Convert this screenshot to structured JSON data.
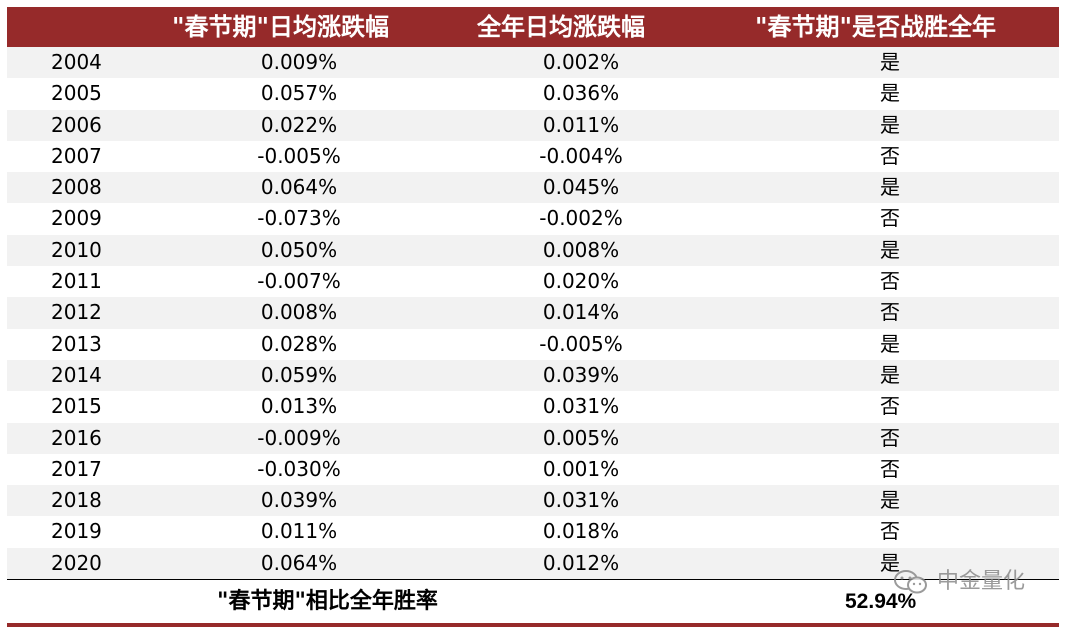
{
  "table": {
    "headers": [
      "\"春节期\"日均涨跌幅",
      "全年日均涨跌幅",
      "\"春节期\"是否战胜全年"
    ],
    "rows": [
      {
        "year": "2004",
        "spring": "0.009%",
        "annual": "0.002%",
        "win": "是"
      },
      {
        "year": "2005",
        "spring": "0.057%",
        "annual": "0.036%",
        "win": "是"
      },
      {
        "year": "2006",
        "spring": "0.022%",
        "annual": "0.011%",
        "win": "是"
      },
      {
        "year": "2007",
        "spring": "-0.005%",
        "annual": "-0.004%",
        "win": "否"
      },
      {
        "year": "2008",
        "spring": "0.064%",
        "annual": "0.045%",
        "win": "是"
      },
      {
        "year": "2009",
        "spring": "-0.073%",
        "annual": "-0.002%",
        "win": "否"
      },
      {
        "year": "2010",
        "spring": "0.050%",
        "annual": "0.008%",
        "win": "是"
      },
      {
        "year": "2011",
        "spring": "-0.007%",
        "annual": "0.020%",
        "win": "否"
      },
      {
        "year": "2012",
        "spring": "0.008%",
        "annual": "0.014%",
        "win": "否"
      },
      {
        "year": "2013",
        "spring": "0.028%",
        "annual": "-0.005%",
        "win": "是"
      },
      {
        "year": "2014",
        "spring": "0.059%",
        "annual": "0.039%",
        "win": "是"
      },
      {
        "year": "2015",
        "spring": "0.013%",
        "annual": "0.031%",
        "win": "否"
      },
      {
        "year": "2016",
        "spring": "-0.009%",
        "annual": "0.005%",
        "win": "否"
      },
      {
        "year": "2017",
        "spring": "-0.030%",
        "annual": "0.001%",
        "win": "否"
      },
      {
        "year": "2018",
        "spring": "0.039%",
        "annual": "0.031%",
        "win": "是"
      },
      {
        "year": "2019",
        "spring": "0.011%",
        "annual": "0.018%",
        "win": "否"
      },
      {
        "year": "2020",
        "spring": "0.064%",
        "annual": "0.012%",
        "win": "是"
      }
    ],
    "footer": {
      "label": "\"春节期\"相比全年胜率",
      "value": "52.94%"
    }
  },
  "watermark": {
    "text": "中金量化",
    "icon": "wechat-icon"
  },
  "colors": {
    "header_bg": "#962a2a",
    "shade": "#f2f2f2"
  }
}
